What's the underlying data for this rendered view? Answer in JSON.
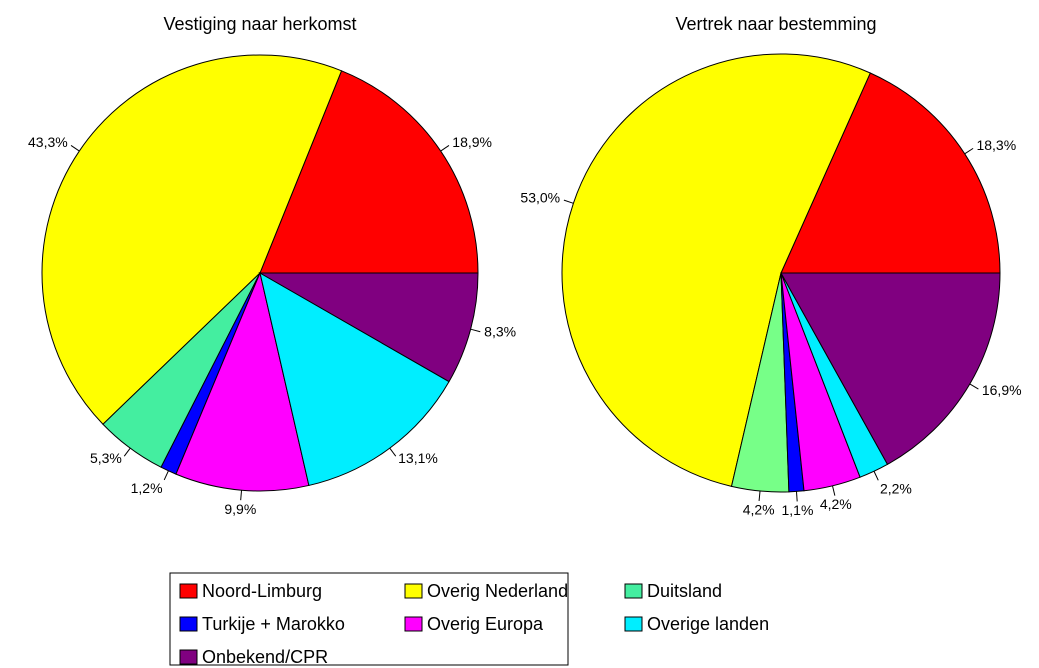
{
  "chart_data": [
    {
      "type": "pie",
      "title": "Vestiging  naar herkomst",
      "categories": [
        "Noord-Limburg",
        "Overig Nederland",
        "Duitsland",
        "Turkije + Marokko",
        "Overig Europa",
        "Overige landen",
        "Onbekend/CPR"
      ],
      "values": [
        18.9,
        43.3,
        5.3,
        1.2,
        9.9,
        13.1,
        8.3
      ],
      "value_labels": [
        "18,9%",
        "43,3%",
        "5,3%",
        "1,2%",
        "9,9%",
        "13,1%",
        "8,3%"
      ],
      "colors": [
        "#ff0000",
        "#ffff00",
        "#44eea0",
        "#0000ff",
        "#ff00ff",
        "#00eeff",
        "#800080"
      ]
    },
    {
      "type": "pie",
      "title": "Vertrek naar bestemming",
      "categories": [
        "Noord-Limburg",
        "Overig Nederland",
        "Duitsland",
        "Turkije + Marokko",
        "Overig Europa",
        "Overige landen",
        "Onbekend/CPR"
      ],
      "values": [
        18.3,
        53.0,
        4.2,
        1.1,
        4.2,
        2.2,
        16.9
      ],
      "value_labels": [
        "18,3%",
        "53,0%",
        "4,2%",
        "1,1%",
        "4,2%",
        "2,2%",
        "16,9%"
      ],
      "colors": [
        "#ff0000",
        "#ffff00",
        "#77ff88",
        "#0000ff",
        "#ff00ff",
        "#00eeff",
        "#800080"
      ]
    }
  ]
}
